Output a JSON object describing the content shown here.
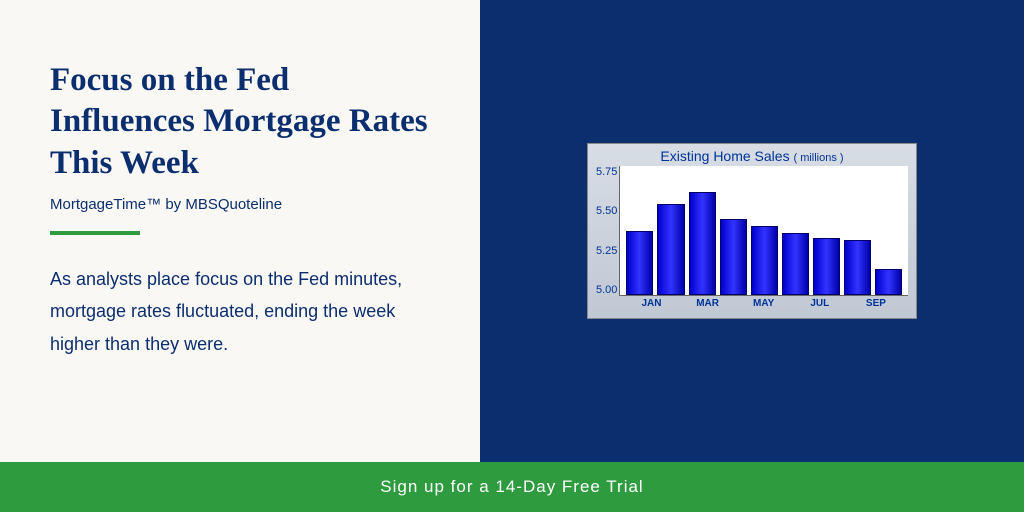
{
  "colors": {
    "headline": "#0b2e6f",
    "subtitle": "#0b2e6f",
    "divider": "#2e9b3f",
    "body": "#0b2e6f",
    "right_bg": "#0b2e6f",
    "cta_bg": "#2e9b3f",
    "cta_text": "#ffffff",
    "left_bg": "#faf8f5"
  },
  "left": {
    "headline": "Focus on the Fed Influences Mortgage Rates This Week",
    "subtitle": "MortgageTime™ by MBSQuoteline",
    "body": "As analysts place focus on the Fed minutes, mortgage rates fluctuated, ending the week higher than they were."
  },
  "chart": {
    "title": "Existing Home Sales",
    "unit": "( millions )",
    "type": "bar",
    "ylim": [
      5.0,
      5.75
    ],
    "yticks": [
      "5.75",
      "5.50",
      "5.25",
      "5.00"
    ],
    "x_labels": [
      "JAN",
      "MAR",
      "MAY",
      "JUL",
      "SEP"
    ],
    "values": [
      5.37,
      5.53,
      5.6,
      5.44,
      5.4,
      5.36,
      5.33,
      5.32,
      5.15
    ],
    "bar_color": "#1a1aee",
    "bg": "#ffffff"
  },
  "cta": {
    "label": "Sign up for a 14-Day Free Trial"
  }
}
